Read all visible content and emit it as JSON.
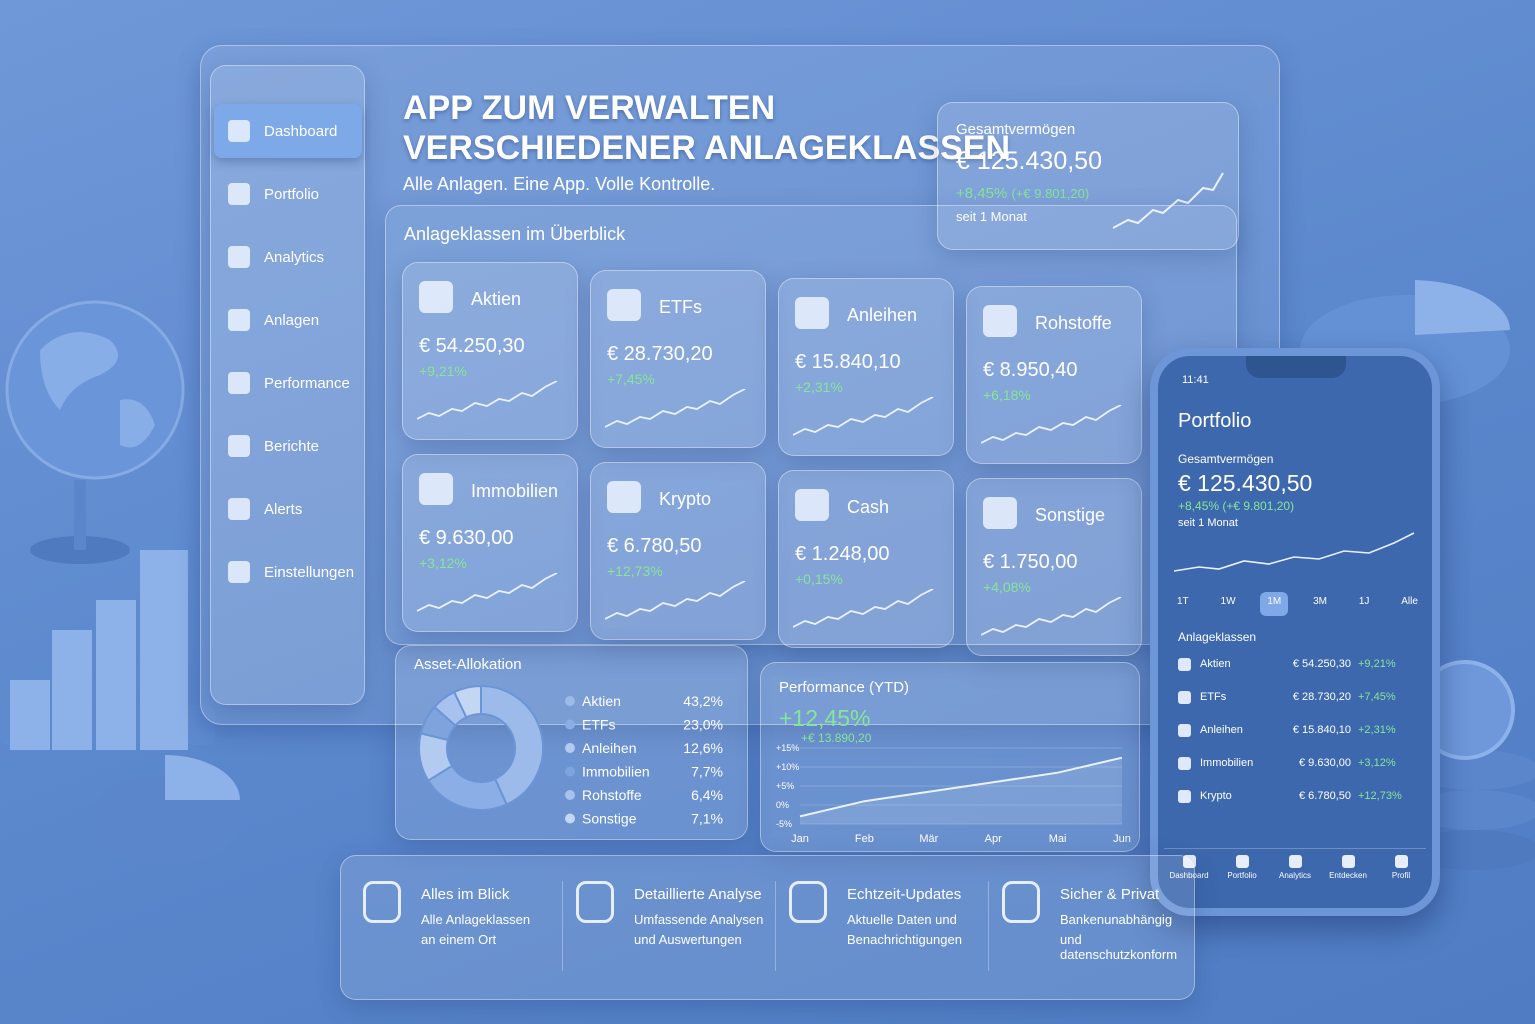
{
  "header": {
    "title_lines": [
      "APP ZUM VERWALTEN",
      "VERSCHIEDENER ANLAGEKLASSEN"
    ],
    "subtitle": "Alle Anlagen. Eine App. Volle Kontrolle."
  },
  "sidebar": [
    "Dashboard",
    "Portfolio",
    "Analytics",
    "Anlagen",
    "Performance",
    "Berichte",
    "Alerts",
    "Einstellungen"
  ],
  "summary": {
    "label": "Gesamtvermögen",
    "value": "€ 125.430,50",
    "change": "+8,45%",
    "change_abs": "(+€ 9.801,20)",
    "period": "seit 1 Monat"
  },
  "overview": {
    "title": "Anlageklassen im Überblick",
    "cards": [
      {
        "name": "Aktien",
        "value": "€ 54.250,30",
        "change": "+9,21%"
      },
      {
        "name": "ETFs",
        "value": "€ 28.730,20",
        "change": "+7,45%"
      },
      {
        "name": "Anleihen",
        "value": "€ 15.840,10",
        "change": "+2,31%"
      },
      {
        "name": "Rohstoffe",
        "value": "€ 8.950,40",
        "change": "+6,18%"
      },
      {
        "name": "Immobilien",
        "value": "€ 9.630,00",
        "change": "+3,12%"
      },
      {
        "name": "Krypto",
        "value": "€ 6.780,50",
        "change": "+12,73%"
      },
      {
        "name": "Cash",
        "value": "€ 1.248,00",
        "change": "+0,15%"
      },
      {
        "name": "Sonstige",
        "value": "€ 1.750,00",
        "change": "+4,08%"
      }
    ]
  },
  "allocation": {
    "type": "pie",
    "title": "Asset-Allokation",
    "categories": [
      "Aktien",
      "ETFs",
      "Anleihen",
      "Immobilien",
      "Rohstoffe",
      "Sonstige"
    ],
    "values": [
      43.2,
      23.0,
      12.6,
      7.7,
      6.4,
      7.1
    ],
    "value_labels": [
      "43,2%",
      "23,0%",
      "12,6%",
      "7,7%",
      "6,4%",
      "7,1%"
    ],
    "colors": [
      "#9dbbea",
      "#8aaee5",
      "#b3cbf0",
      "#7fa3dc",
      "#a7c2ee",
      "#c3d6f4"
    ]
  },
  "performance": {
    "type": "line",
    "title": "Performance (YTD)",
    "headline": "+12,45%",
    "headline_abs": "+€ 13.890,20",
    "categories": [
      "Jan",
      "Feb",
      "Mär",
      "Apr",
      "Mai",
      "Jun"
    ],
    "values": [
      -3,
      1,
      3.5,
      6,
      8.5,
      12.45
    ],
    "ylim": [
      -5,
      15
    ],
    "yticks": [
      {
        "value": -5,
        "label": "-5%"
      },
      {
        "value": 0,
        "label": "0%"
      },
      {
        "value": 5,
        "label": "+5%"
      },
      {
        "value": 10,
        "label": "+10%"
      },
      {
        "value": 15,
        "label": "+15%"
      }
    ],
    "color": "#eaf2ff"
  },
  "phone": {
    "time": "11:41",
    "title": "Portfolio",
    "label": "Gesamtvermögen",
    "value": "€ 125.430,50",
    "change": "+8,45% (+€ 9.801,20)",
    "period": "seit 1 Monat",
    "ranges": [
      "1T",
      "1W",
      "1M",
      "3M",
      "1J",
      "Alle"
    ],
    "list_title": "Anlageklassen",
    "rows": [
      {
        "name": "Aktien",
        "value": "€ 54.250,30",
        "change": "+9,21%"
      },
      {
        "name": "ETFs",
        "value": "€ 28.730,20",
        "change": "+7,45%"
      },
      {
        "name": "Anleihen",
        "value": "€ 15.840,10",
        "change": "+2,31%"
      },
      {
        "name": "Immobilien",
        "value": "€ 9.630,00",
        "change": "+3,12%"
      },
      {
        "name": "Krypto",
        "value": "€ 6.780,50",
        "change": "+12,73%"
      }
    ],
    "tabs": [
      "Dashboard",
      "Portfolio",
      "Analytics",
      "Entdecken",
      "Profil"
    ]
  },
  "features": [
    {
      "title": "Alles im Blick",
      "lines": [
        "Alle Anlageklassen",
        "an einem Ort"
      ]
    },
    {
      "title": "Detaillierte Analyse",
      "lines": [
        "Umfassende Analysen",
        "und Auswertungen"
      ]
    },
    {
      "title": "Echtzeit-Updates",
      "lines": [
        "Aktuelle Daten und",
        "Benachrichtigungen"
      ]
    },
    {
      "title": "Sicher & Privat",
      "lines": [
        "Bankenunabhängig",
        "und datenschutzkonform"
      ]
    }
  ]
}
